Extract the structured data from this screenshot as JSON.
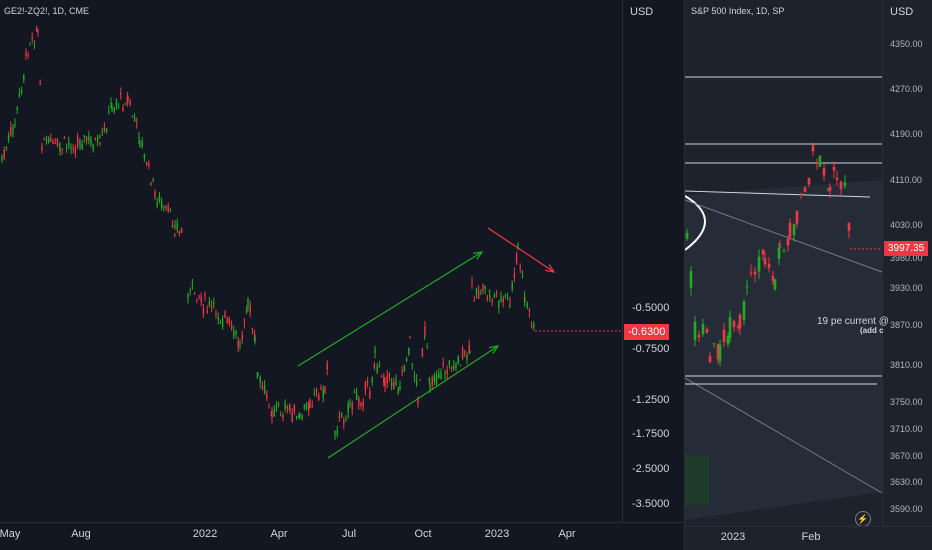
{
  "left_chart": {
    "symbol": "GE2!-ZQ2!, 1D, CME",
    "currency": "USD",
    "y_ticks": [
      "-0.5000",
      "-0.7500",
      "-1.2500",
      "-1.7500",
      "-2.5000",
      "-3.5000"
    ],
    "last_price": "-0.6300",
    "x_ticks": [
      "May",
      "Aug",
      "2022",
      "Apr",
      "Jul",
      "Oct",
      "2023",
      "Apr"
    ],
    "annotations": {
      "upper_arrow_color": "#22ab22",
      "lower_arrow_color": "#22ab22",
      "down_arrow_color": "#f23645"
    }
  },
  "right_chart": {
    "symbol": "S&P 500 Index, 1D, SP",
    "currency": "USD",
    "y_ticks": [
      "4350.00",
      "4270.00",
      "4190.00",
      "4110.00",
      "4030.00",
      "3980.00",
      "3930.00",
      "3870.00",
      "3810.00",
      "3750.00",
      "3710.00",
      "3670.00",
      "3630.00",
      "3590.00"
    ],
    "last_price": "3997.35",
    "x_ticks": [
      "2023",
      "Feb"
    ],
    "note_main": "19 pe current @",
    "note_sub": "(add c",
    "logo_icon": "tradingview-logo-icon"
  },
  "colors": {
    "up": "#22ab22",
    "down": "#f23645",
    "background": "#131722"
  }
}
